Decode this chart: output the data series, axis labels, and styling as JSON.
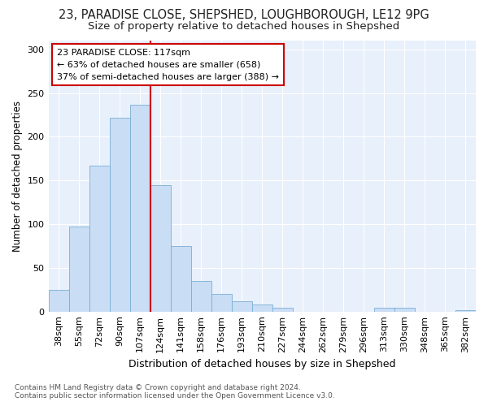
{
  "title_line1": "23, PARADISE CLOSE, SHEPSHED, LOUGHBOROUGH, LE12 9PG",
  "title_line2": "Size of property relative to detached houses in Shepshed",
  "xlabel": "Distribution of detached houses by size in Shepshed",
  "ylabel": "Number of detached properties",
  "categories": [
    "38sqm",
    "55sqm",
    "72sqm",
    "90sqm",
    "107sqm",
    "124sqm",
    "141sqm",
    "158sqm",
    "176sqm",
    "193sqm",
    "210sqm",
    "227sqm",
    "244sqm",
    "262sqm",
    "279sqm",
    "296sqm",
    "313sqm",
    "330sqm",
    "348sqm",
    "365sqm",
    "382sqm"
  ],
  "values": [
    25,
    97,
    167,
    222,
    237,
    145,
    75,
    35,
    20,
    12,
    8,
    4,
    0,
    0,
    0,
    0,
    4,
    4,
    0,
    0,
    2
  ],
  "bar_color": "#c9ddf5",
  "bar_edge_color": "#7bafd4",
  "vline_x_index": 5,
  "vline_color": "#cc0000",
  "annotation_text": "23 PARADISE CLOSE: 117sqm\n← 63% of detached houses are smaller (658)\n37% of semi-detached houses are larger (388) →",
  "annotation_box_facecolor": "#ffffff",
  "annotation_box_edgecolor": "#cc0000",
  "ylim": [
    0,
    310
  ],
  "yticks": [
    0,
    50,
    100,
    150,
    200,
    250,
    300
  ],
  "bg_color": "#e8f0fb",
  "footer": "Contains HM Land Registry data © Crown copyright and database right 2024.\nContains public sector information licensed under the Open Government Licence v3.0.",
  "title_fontsize": 10.5,
  "subtitle_fontsize": 9.5,
  "ann_fontsize": 8,
  "tick_fontsize": 8,
  "ylabel_fontsize": 8.5,
  "xlabel_fontsize": 9
}
